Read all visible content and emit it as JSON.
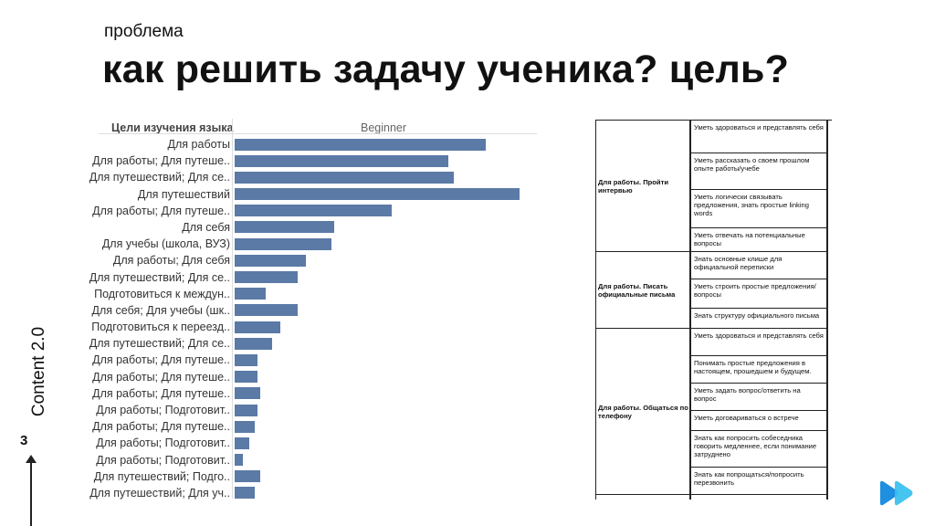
{
  "slide": {
    "subtitle": "проблема",
    "title": "как решить задачу ученика? цель?",
    "side_label": "Content 2.0",
    "page_number": "3"
  },
  "chart_data": {
    "type": "bar",
    "dimension_header": "Цели изучения языка",
    "column_header": "Beginner",
    "categories": [
      "Для работы",
      "Для работы; Для путеше..",
      "Для путешествий; Для се..",
      "Для путешествий",
      "Для работы; Для путеше..",
      "Для себя",
      "Для учебы (школа, ВУЗ)",
      "Для работы; Для себя",
      "Для путешествий; Для се..",
      "Подготовиться к междун..",
      "Для себя; Для учебы (шк..",
      "Подготовиться к переезд..",
      "Для путешествий; Для се..",
      "Для работы; Для путеше..",
      "Для работы; Для путеше..",
      "Для работы; Для путеше..",
      "Для работы; Подготовит..",
      "Для работы; Для путеше..",
      "Для работы; Подготовит..",
      "Для работы; Подготовит..",
      "Для путешествий; Подго..",
      "Для путешествий; Для уч.."
    ],
    "values": [
      88,
      75,
      77,
      100,
      55,
      35,
      34,
      25,
      22,
      11,
      22,
      16,
      13,
      8,
      8,
      9,
      8,
      7,
      5,
      3,
      9,
      7
    ],
    "xlim": [
      0,
      100
    ],
    "grid": false
  },
  "table": {
    "groups": [
      {
        "label": "Для работы. Пройти интервью",
        "rows": [
          "Уметь здороваться и представлять себя",
          "Уметь рассказать о своем прошлом опыте работы/учебе",
          "Уметь логически связывать предложения, знать простые linking words",
          "Уметь отвечать на потенциальные вопросы"
        ]
      },
      {
        "label": "Для работы. Писать официальные письма",
        "rows": [
          "Знать основные клише для официальной переписки",
          "Уметь строить простые предложения/вопросы",
          "Знать структуру официального письма"
        ]
      },
      {
        "label": "Для работы. Общаться по телефону",
        "rows": [
          "Уметь здороваться и представлять себя",
          "Понимать простые предложения в настоящем, прошедшем и будущем.",
          "Уметь задать вопрос/ответить на вопрос",
          "Уметь договариваться о встрече",
          "Знать как попросить собеседника говорить медленнее, если понимание затруднено",
          "Знать как попрощаться/попросить перезвонить"
        ]
      }
    ]
  },
  "colors": {
    "bar": "#5b7aa6",
    "logo_primary": "#1f8fe0",
    "logo_secondary": "#36c0ef"
  },
  "icons": {
    "logo": "play-arrows-logo",
    "arrow": "up-arrow-icon"
  }
}
